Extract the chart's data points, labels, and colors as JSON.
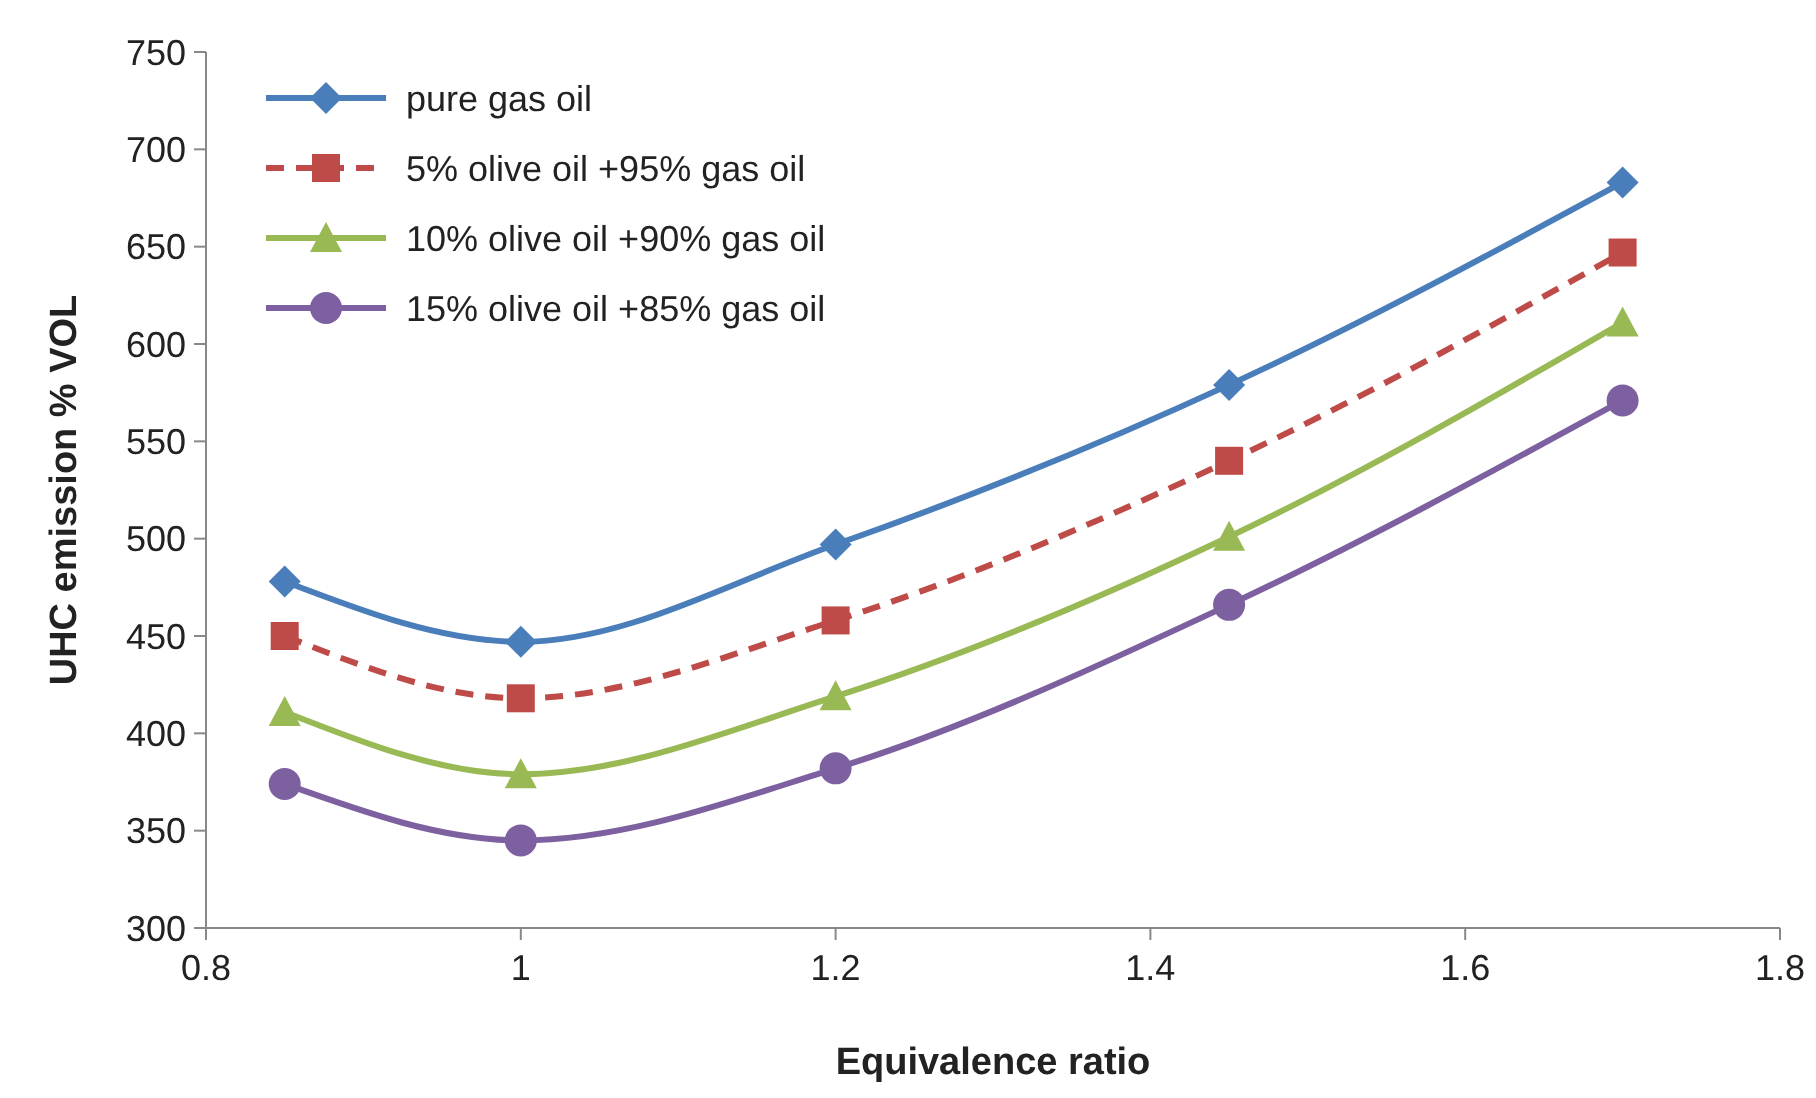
{
  "chart_data": {
    "type": "line",
    "xlabel": "Equivalence ratio",
    "ylabel": "UHC emission % VOL",
    "x": [
      0.85,
      1,
      1.2,
      1.45,
      1.7
    ],
    "xlim": [
      0.8,
      1.8
    ],
    "xticks": [
      0.8,
      1,
      1.2,
      1.4,
      1.6,
      1.8
    ],
    "ylim": [
      300,
      750
    ],
    "yticks": [
      300,
      350,
      400,
      450,
      500,
      550,
      600,
      650,
      700,
      750
    ],
    "grid": false,
    "legend": "top left",
    "series": [
      {
        "name": "pure gas oil",
        "color": "#4a7ebb",
        "marker": "diamond",
        "line_style": "solid",
        "values": [
          478,
          447,
          497,
          579,
          683
        ]
      },
      {
        "name": "5% olive oil +95% gas oil",
        "color": "#be4b48",
        "marker": "square",
        "line_style": "dashed",
        "values": [
          450,
          418,
          458,
          540,
          647
        ]
      },
      {
        "name": "10% olive oil +90% gas oil",
        "color": "#98b954",
        "marker": "triangle",
        "line_style": "solid",
        "values": [
          411,
          379,
          419,
          501,
          611
        ]
      },
      {
        "name": "15% olive oil +85% gas oil",
        "color": "#7d60a0",
        "marker": "circle",
        "line_style": "solid",
        "values": [
          374,
          345,
          382,
          466,
          571
        ]
      }
    ]
  }
}
